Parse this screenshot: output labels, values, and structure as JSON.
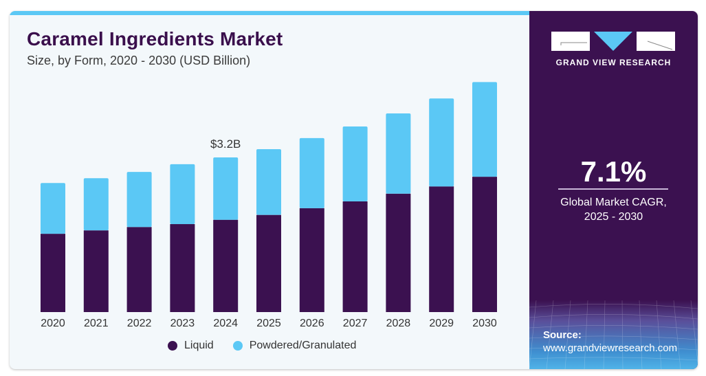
{
  "header": {
    "title": "Caramel Ingredients Market",
    "subtitle": "Size, by Form, 2020 - 2030 (USD Billion)"
  },
  "brand": {
    "name": "GRAND VIEW RESEARCH",
    "logo_icon": "gvr-logo-icon"
  },
  "stats": {
    "cagr_value": "7.1%",
    "cagr_label_line1": "Global Market CAGR,",
    "cagr_label_line2": "2025 - 2030"
  },
  "source": {
    "label": "Source:",
    "url": "www.grandviewresearch.com"
  },
  "colors": {
    "liquid": "#3b1150",
    "powdered": "#5bc8f5",
    "accent": "#5bc8f5",
    "panel": "#3b1150"
  },
  "chart_data": {
    "type": "bar",
    "stacked": true,
    "title": "Caramel Ingredients Market",
    "subtitle": "Size, by Form, 2020 - 2030 (USD Billion)",
    "xlabel": "",
    "ylabel": "",
    "categories": [
      "2020",
      "2021",
      "2022",
      "2023",
      "2024",
      "2025",
      "2026",
      "2027",
      "2028",
      "2029",
      "2030"
    ],
    "series": [
      {
        "name": "Liquid",
        "color": "#3b1150",
        "values": [
          1.62,
          1.69,
          1.76,
          1.82,
          1.91,
          2.01,
          2.15,
          2.29,
          2.45,
          2.6,
          2.8
        ]
      },
      {
        "name": "Powdered/Granulated",
        "color": "#5bc8f5",
        "values": [
          1.05,
          1.08,
          1.14,
          1.24,
          1.29,
          1.36,
          1.45,
          1.55,
          1.66,
          1.82,
          1.96
        ]
      }
    ],
    "annotations": [
      {
        "category": "2024",
        "text": "$3.2B"
      }
    ],
    "ylim": [
      0,
      4.8
    ],
    "grid": false,
    "axis_visible": false,
    "legend": {
      "position": "bottom",
      "entries": [
        "Liquid",
        "Powdered/Granulated"
      ]
    }
  }
}
